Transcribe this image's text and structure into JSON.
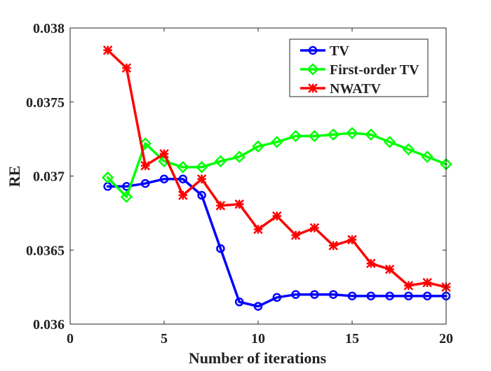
{
  "chart_data": {
    "type": "line",
    "title": "",
    "xlabel": "Number of iterations",
    "ylabel": "RE",
    "xlim": [
      0,
      20
    ],
    "ylim": [
      0.036,
      0.038
    ],
    "xticks": [
      0,
      5,
      10,
      15,
      20
    ],
    "xtick_labels": [
      "0",
      "5",
      "10",
      "15",
      "20"
    ],
    "yticks": [
      0.036,
      0.0365,
      0.037,
      0.0375,
      0.038
    ],
    "ytick_labels": [
      "0.036",
      "0.0365",
      "0.037",
      "0.0375",
      "0.038"
    ],
    "grid": false,
    "legend_position": "top-right",
    "x": [
      2,
      3,
      4,
      5,
      6,
      7,
      8,
      9,
      10,
      11,
      12,
      13,
      14,
      15,
      16,
      17,
      18,
      19,
      20
    ],
    "series": [
      {
        "name": "TV",
        "color": "#0000ff",
        "marker": "circle",
        "values": [
          0.03693,
          0.03693,
          0.03695,
          0.03698,
          0.03698,
          0.03687,
          0.03651,
          0.03615,
          0.03612,
          0.03618,
          0.0362,
          0.0362,
          0.0362,
          0.03619,
          0.03619,
          0.03619,
          0.03619,
          0.03619,
          0.03619
        ]
      },
      {
        "name": "First-order TV",
        "color": "#00ff00",
        "marker": "diamond",
        "values": [
          0.03699,
          0.03686,
          0.03722,
          0.0371,
          0.03706,
          0.03706,
          0.0371,
          0.03713,
          0.0372,
          0.03723,
          0.03727,
          0.03727,
          0.03728,
          0.03729,
          0.03728,
          0.03723,
          0.03718,
          0.03713,
          0.03708
        ]
      },
      {
        "name": "NWATV",
        "color": "#ff0000",
        "marker": "asterisk",
        "values": [
          0.03785,
          0.03773,
          0.03707,
          0.03715,
          0.03687,
          0.03698,
          0.0368,
          0.03681,
          0.03664,
          0.03673,
          0.0366,
          0.03665,
          0.03653,
          0.03657,
          0.03641,
          0.03637,
          0.03626,
          0.03628,
          0.03625
        ]
      }
    ]
  }
}
